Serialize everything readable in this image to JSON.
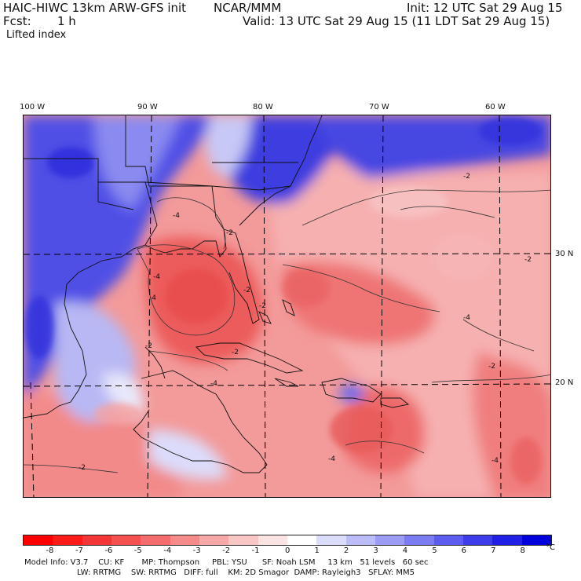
{
  "header": {
    "model_title": "HAIC-HIWC 13km ARW-GFS init",
    "org": "NCAR/MMM",
    "init": "Init: 12 UTC Sat 29 Aug 15",
    "fcst_label": "Fcst:",
    "fcst_value": "1 h",
    "valid": "Valid: 13 UTC Sat 29 Aug 15 (11 LDT Sat 29 Aug 15)",
    "field": "Lifted index"
  },
  "map": {
    "lon_labels": [
      "100 W",
      "90 W",
      "80 W",
      "70 W",
      "60 W"
    ],
    "lat_labels": [
      "30 N",
      "20 N"
    ],
    "contour_labels": [
      "-4",
      "-4",
      "-2",
      "-2",
      "-4",
      "-2",
      "-2",
      "-2",
      "-4",
      "-4",
      "-2",
      "-4",
      "-2",
      "-2",
      "-2",
      "-4"
    ]
  },
  "colorbar": {
    "ticks": [
      "-8",
      "-7",
      "-6",
      "-5",
      "-4",
      "-3",
      "-2",
      "-1",
      "0",
      "1",
      "2",
      "3",
      "4",
      "5",
      "6",
      "7",
      "8"
    ],
    "unit": "°C",
    "colors": [
      "#ff0000",
      "#ff1a1a",
      "#f43535",
      "#f55050",
      "#f56c6c",
      "#f58a8a",
      "#f7a8a8",
      "#f9c6c6",
      "#fbe3e3",
      "#ffffff",
      "#dcdcfb",
      "#bcbcf8",
      "#9c9cf5",
      "#7c7cf2",
      "#5c5cf0",
      "#3c3ceb",
      "#1f1fe6",
      "#0000dd"
    ]
  },
  "footer": {
    "line1": "Model Info: V3.7    CU: KF       MP: Thompson     PBL: YSU      SF: Noah LSM     13 km   51 levels   60 sec",
    "line2": "LW: RRTMG    SW: RRTMG   DIFF: full    KM: 2D Smagor  DAMP: Rayleigh3   SFLAY: MM5"
  }
}
